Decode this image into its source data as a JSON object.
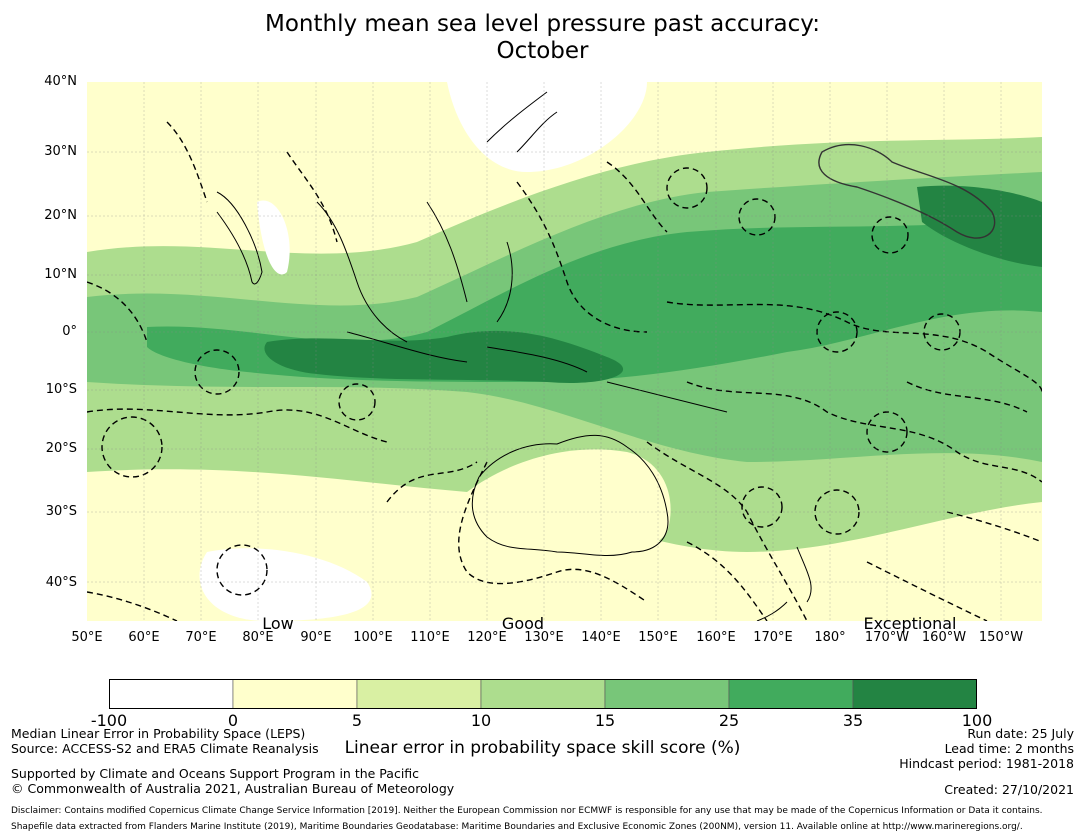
{
  "title": {
    "line1": "Monthly mean sea level pressure past accuracy:",
    "line2": "October"
  },
  "map": {
    "lat_ticks": [
      "40°N",
      "30°N",
      "20°N",
      "10°N",
      "0°",
      "10°S",
      "20°S",
      "30°S",
      "40°S"
    ],
    "lon_ticks": [
      "50°E",
      "60°E",
      "70°E",
      "80°E",
      "90°E",
      "100°E",
      "110°E",
      "120°E",
      "130°E",
      "140°E",
      "150°E",
      "160°E",
      "170°E",
      "180°",
      "170°W",
      "160°W",
      "150°W"
    ],
    "category_labels": [
      "Low",
      "Good",
      "Exceptional"
    ],
    "grid": true
  },
  "colorbar": {
    "ticks": [
      "-100",
      "0",
      "5",
      "10",
      "15",
      "25",
      "35",
      "100"
    ],
    "colors": [
      "#ffffff",
      "#ffffcc",
      "#d9f0a3",
      "#addd8e",
      "#78c679",
      "#41ab5d",
      "#238443"
    ],
    "label": "Linear error in probability space skill score (%)"
  },
  "footer": {
    "left": [
      "Median Linear Error in Probability Space (LEPS)",
      "Source: ACCESS-S2 and ERA5 Climate Reanalysis",
      "Supported by Climate and Oceans Support Program in the Pacific",
      "© Commonwealth of Australia 2021, Australian Bureau of Meteorology"
    ],
    "right": [
      "Run date: 25 July",
      "Lead time: 2 months",
      "Hindcast period: 1981-2018",
      "Created: 27/10/2021"
    ],
    "disclaimer1": "Disclaimer: Contains modified Copernicus Climate Change Service Information [2019]. Neither the European Commission nor ECMWF is responsible for any use that may be made of the Copernicus Information or Data it contains.",
    "disclaimer2": "Shapefile data extracted from Flanders Marine Institute (2019), Maritime Boundaries Geodatabase: Maritime Boundaries and Exclusive Economic Zones (200NM), version 11. Available online at http://www.marineregions.org/."
  }
}
